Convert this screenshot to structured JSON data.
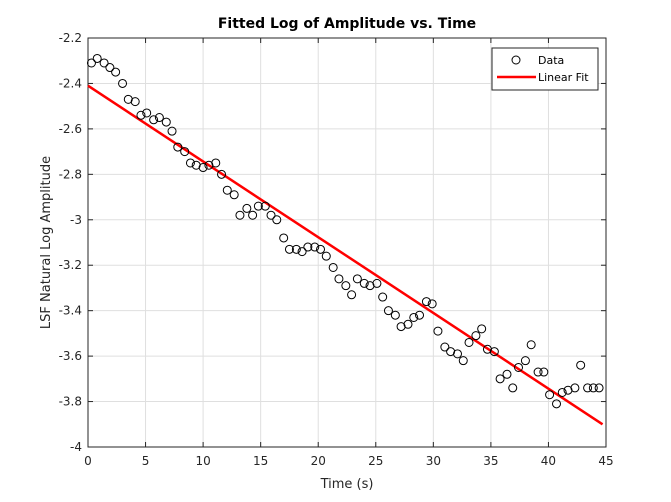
{
  "chart_data": {
    "type": "scatter",
    "title": "Fitted Log of Amplitude vs. Time",
    "xlabel": "Time (s)",
    "ylabel": "LSF Natural Log Amplitude",
    "xlim": [
      0,
      45
    ],
    "ylim": [
      -4,
      -2.2
    ],
    "xticks": [
      0,
      5,
      10,
      15,
      20,
      25,
      30,
      35,
      40,
      45
    ],
    "yticks": [
      -4,
      -3.8,
      -3.6,
      -3.4,
      -3.2,
      -3,
      -2.8,
      -2.6,
      -2.4,
      -2.2
    ],
    "xtick_labels": [
      "0",
      "5",
      "10",
      "15",
      "20",
      "25",
      "30",
      "35",
      "40",
      "45"
    ],
    "ytick_labels": [
      "-4",
      "-3.8",
      "-3.6",
      "-3.4",
      "-3.2",
      "-3",
      "-2.8",
      "-2.6",
      "-2.4",
      "-2.2"
    ],
    "grid": true,
    "legend_position": "top-right",
    "series": [
      {
        "name": "Data",
        "kind": "markers",
        "marker": "open-circle",
        "color": "#000000",
        "x": [
          0.3,
          0.8,
          1.4,
          1.9,
          2.4,
          3.0,
          3.5,
          4.1,
          4.6,
          5.1,
          5.7,
          6.2,
          6.8,
          7.3,
          7.8,
          8.4,
          8.9,
          9.4,
          10.0,
          10.5,
          11.1,
          11.6,
          12.1,
          12.7,
          13.2,
          13.8,
          14.3,
          14.8,
          15.4,
          15.9,
          16.4,
          17.0,
          17.5,
          18.1,
          18.6,
          19.1,
          19.7,
          20.2,
          20.7,
          21.3,
          21.8,
          22.4,
          22.9,
          23.4,
          24.0,
          24.5,
          25.1,
          25.6,
          26.1,
          26.7,
          27.2,
          27.8,
          28.3,
          28.8,
          29.4,
          29.9,
          30.4,
          31.0,
          31.5,
          32.1,
          32.6,
          33.1,
          33.7,
          34.2,
          34.7,
          35.3,
          35.8,
          36.4,
          36.9,
          37.4,
          38.0,
          38.5,
          39.1,
          39.6,
          40.1,
          40.7,
          41.2,
          41.7,
          42.3,
          42.8,
          43.4,
          43.9,
          44.4
        ],
        "y": [
          -2.31,
          -2.29,
          -2.31,
          -2.33,
          -2.35,
          -2.4,
          -2.47,
          -2.48,
          -2.54,
          -2.53,
          -2.56,
          -2.55,
          -2.57,
          -2.61,
          -2.68,
          -2.7,
          -2.75,
          -2.76,
          -2.77,
          -2.76,
          -2.75,
          -2.8,
          -2.87,
          -2.89,
          -2.98,
          -2.95,
          -2.98,
          -2.94,
          -2.94,
          -2.98,
          -3.0,
          -3.08,
          -3.13,
          -3.13,
          -3.14,
          -3.12,
          -3.12,
          -3.13,
          -3.16,
          -3.21,
          -3.26,
          -3.29,
          -3.33,
          -3.26,
          -3.28,
          -3.29,
          -3.28,
          -3.34,
          -3.4,
          -3.42,
          -3.47,
          -3.46,
          -3.43,
          -3.42,
          -3.36,
          -3.37,
          -3.49,
          -3.56,
          -3.58,
          -3.59,
          -3.62,
          -3.54,
          -3.51,
          -3.48,
          -3.57,
          -3.58,
          -3.7,
          -3.68,
          -3.74,
          -3.65,
          -3.62,
          -3.55,
          -3.67,
          -3.67,
          -3.77,
          -3.81,
          -3.76,
          -3.75,
          -3.74,
          -3.64,
          -3.74,
          -3.74,
          -3.74
        ]
      },
      {
        "name": "Linear Fit",
        "kind": "line",
        "color": "#ff0000",
        "x": [
          0,
          44.7
        ],
        "y": [
          -2.41,
          -3.9
        ]
      }
    ]
  }
}
